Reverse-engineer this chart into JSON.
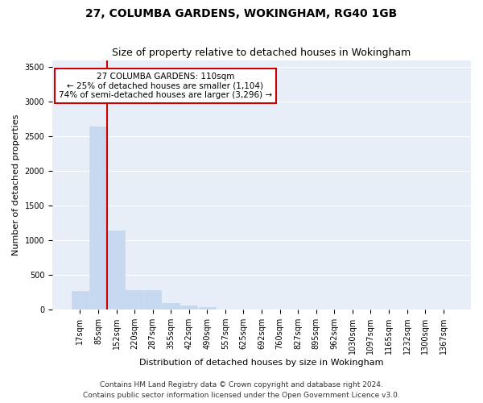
{
  "title": "27, COLUMBA GARDENS, WOKINGHAM, RG40 1GB",
  "subtitle": "Size of property relative to detached houses in Wokingham",
  "xlabel": "Distribution of detached houses by size in Wokingham",
  "ylabel": "Number of detached properties",
  "bar_color": "#c5d8f0",
  "bar_edge_color": "#c5d8f0",
  "background_color": "#e8eef8",
  "grid_color": "#ffffff",
  "categories": [
    "17sqm",
    "85sqm",
    "152sqm",
    "220sqm",
    "287sqm",
    "355sqm",
    "422sqm",
    "490sqm",
    "557sqm",
    "625sqm",
    "692sqm",
    "760sqm",
    "827sqm",
    "895sqm",
    "962sqm",
    "1030sqm",
    "1097sqm",
    "1165sqm",
    "1232sqm",
    "1300sqm",
    "1367sqm"
  ],
  "values": [
    270,
    2640,
    1140,
    285,
    285,
    95,
    65,
    40,
    0,
    0,
    0,
    0,
    0,
    0,
    0,
    0,
    0,
    0,
    0,
    0,
    0
  ],
  "annotation_text": "27 COLUMBA GARDENS: 110sqm\n← 25% of detached houses are smaller (1,104)\n74% of semi-detached houses are larger (3,296) →",
  "annotation_box_color": "#ffffff",
  "annotation_box_edge_color": "#cc0000",
  "footer_line1": "Contains HM Land Registry data © Crown copyright and database right 2024.",
  "footer_line2": "Contains public sector information licensed under the Open Government Licence v3.0.",
  "ylim": [
    0,
    3600
  ],
  "yticks": [
    0,
    500,
    1000,
    1500,
    2000,
    2500,
    3000,
    3500
  ],
  "red_line_color": "#cc0000",
  "title_fontsize": 10,
  "subtitle_fontsize": 9,
  "tick_fontsize": 7,
  "ylabel_fontsize": 8,
  "xlabel_fontsize": 8,
  "footer_fontsize": 6.5
}
